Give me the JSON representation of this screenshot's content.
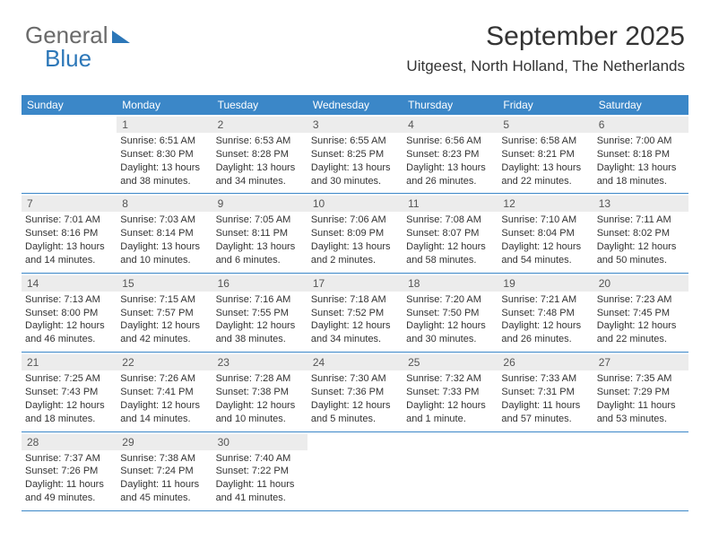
{
  "logo": {
    "part1": "General",
    "part2": "Blue"
  },
  "title": "September 2025",
  "location": "Uitgeest, North Holland, The Netherlands",
  "colors": {
    "header_bg": "#3b87c8",
    "header_fg": "#ffffff",
    "daynum_bg": "#ececec",
    "text": "#333333",
    "rule": "#3b87c8",
    "page_bg": "#ffffff",
    "logo_gray": "#6a6a6a",
    "logo_blue": "#2c77b8"
  },
  "days_of_week": [
    "Sunday",
    "Monday",
    "Tuesday",
    "Wednesday",
    "Thursday",
    "Friday",
    "Saturday"
  ],
  "weeks": [
    [
      null,
      {
        "n": "1",
        "sr": "Sunrise: 6:51 AM",
        "ss": "Sunset: 8:30 PM",
        "d1": "Daylight: 13 hours",
        "d2": "and 38 minutes."
      },
      {
        "n": "2",
        "sr": "Sunrise: 6:53 AM",
        "ss": "Sunset: 8:28 PM",
        "d1": "Daylight: 13 hours",
        "d2": "and 34 minutes."
      },
      {
        "n": "3",
        "sr": "Sunrise: 6:55 AM",
        "ss": "Sunset: 8:25 PM",
        "d1": "Daylight: 13 hours",
        "d2": "and 30 minutes."
      },
      {
        "n": "4",
        "sr": "Sunrise: 6:56 AM",
        "ss": "Sunset: 8:23 PM",
        "d1": "Daylight: 13 hours",
        "d2": "and 26 minutes."
      },
      {
        "n": "5",
        "sr": "Sunrise: 6:58 AM",
        "ss": "Sunset: 8:21 PM",
        "d1": "Daylight: 13 hours",
        "d2": "and 22 minutes."
      },
      {
        "n": "6",
        "sr": "Sunrise: 7:00 AM",
        "ss": "Sunset: 8:18 PM",
        "d1": "Daylight: 13 hours",
        "d2": "and 18 minutes."
      }
    ],
    [
      {
        "n": "7",
        "sr": "Sunrise: 7:01 AM",
        "ss": "Sunset: 8:16 PM",
        "d1": "Daylight: 13 hours",
        "d2": "and 14 minutes."
      },
      {
        "n": "8",
        "sr": "Sunrise: 7:03 AM",
        "ss": "Sunset: 8:14 PM",
        "d1": "Daylight: 13 hours",
        "d2": "and 10 minutes."
      },
      {
        "n": "9",
        "sr": "Sunrise: 7:05 AM",
        "ss": "Sunset: 8:11 PM",
        "d1": "Daylight: 13 hours",
        "d2": "and 6 minutes."
      },
      {
        "n": "10",
        "sr": "Sunrise: 7:06 AM",
        "ss": "Sunset: 8:09 PM",
        "d1": "Daylight: 13 hours",
        "d2": "and 2 minutes."
      },
      {
        "n": "11",
        "sr": "Sunrise: 7:08 AM",
        "ss": "Sunset: 8:07 PM",
        "d1": "Daylight: 12 hours",
        "d2": "and 58 minutes."
      },
      {
        "n": "12",
        "sr": "Sunrise: 7:10 AM",
        "ss": "Sunset: 8:04 PM",
        "d1": "Daylight: 12 hours",
        "d2": "and 54 minutes."
      },
      {
        "n": "13",
        "sr": "Sunrise: 7:11 AM",
        "ss": "Sunset: 8:02 PM",
        "d1": "Daylight: 12 hours",
        "d2": "and 50 minutes."
      }
    ],
    [
      {
        "n": "14",
        "sr": "Sunrise: 7:13 AM",
        "ss": "Sunset: 8:00 PM",
        "d1": "Daylight: 12 hours",
        "d2": "and 46 minutes."
      },
      {
        "n": "15",
        "sr": "Sunrise: 7:15 AM",
        "ss": "Sunset: 7:57 PM",
        "d1": "Daylight: 12 hours",
        "d2": "and 42 minutes."
      },
      {
        "n": "16",
        "sr": "Sunrise: 7:16 AM",
        "ss": "Sunset: 7:55 PM",
        "d1": "Daylight: 12 hours",
        "d2": "and 38 minutes."
      },
      {
        "n": "17",
        "sr": "Sunrise: 7:18 AM",
        "ss": "Sunset: 7:52 PM",
        "d1": "Daylight: 12 hours",
        "d2": "and 34 minutes."
      },
      {
        "n": "18",
        "sr": "Sunrise: 7:20 AM",
        "ss": "Sunset: 7:50 PM",
        "d1": "Daylight: 12 hours",
        "d2": "and 30 minutes."
      },
      {
        "n": "19",
        "sr": "Sunrise: 7:21 AM",
        "ss": "Sunset: 7:48 PM",
        "d1": "Daylight: 12 hours",
        "d2": "and 26 minutes."
      },
      {
        "n": "20",
        "sr": "Sunrise: 7:23 AM",
        "ss": "Sunset: 7:45 PM",
        "d1": "Daylight: 12 hours",
        "d2": "and 22 minutes."
      }
    ],
    [
      {
        "n": "21",
        "sr": "Sunrise: 7:25 AM",
        "ss": "Sunset: 7:43 PM",
        "d1": "Daylight: 12 hours",
        "d2": "and 18 minutes."
      },
      {
        "n": "22",
        "sr": "Sunrise: 7:26 AM",
        "ss": "Sunset: 7:41 PM",
        "d1": "Daylight: 12 hours",
        "d2": "and 14 minutes."
      },
      {
        "n": "23",
        "sr": "Sunrise: 7:28 AM",
        "ss": "Sunset: 7:38 PM",
        "d1": "Daylight: 12 hours",
        "d2": "and 10 minutes."
      },
      {
        "n": "24",
        "sr": "Sunrise: 7:30 AM",
        "ss": "Sunset: 7:36 PM",
        "d1": "Daylight: 12 hours",
        "d2": "and 5 minutes."
      },
      {
        "n": "25",
        "sr": "Sunrise: 7:32 AM",
        "ss": "Sunset: 7:33 PM",
        "d1": "Daylight: 12 hours",
        "d2": "and 1 minute."
      },
      {
        "n": "26",
        "sr": "Sunrise: 7:33 AM",
        "ss": "Sunset: 7:31 PM",
        "d1": "Daylight: 11 hours",
        "d2": "and 57 minutes."
      },
      {
        "n": "27",
        "sr": "Sunrise: 7:35 AM",
        "ss": "Sunset: 7:29 PM",
        "d1": "Daylight: 11 hours",
        "d2": "and 53 minutes."
      }
    ],
    [
      {
        "n": "28",
        "sr": "Sunrise: 7:37 AM",
        "ss": "Sunset: 7:26 PM",
        "d1": "Daylight: 11 hours",
        "d2": "and 49 minutes."
      },
      {
        "n": "29",
        "sr": "Sunrise: 7:38 AM",
        "ss": "Sunset: 7:24 PM",
        "d1": "Daylight: 11 hours",
        "d2": "and 45 minutes."
      },
      {
        "n": "30",
        "sr": "Sunrise: 7:40 AM",
        "ss": "Sunset: 7:22 PM",
        "d1": "Daylight: 11 hours",
        "d2": "and 41 minutes."
      },
      null,
      null,
      null,
      null
    ]
  ]
}
